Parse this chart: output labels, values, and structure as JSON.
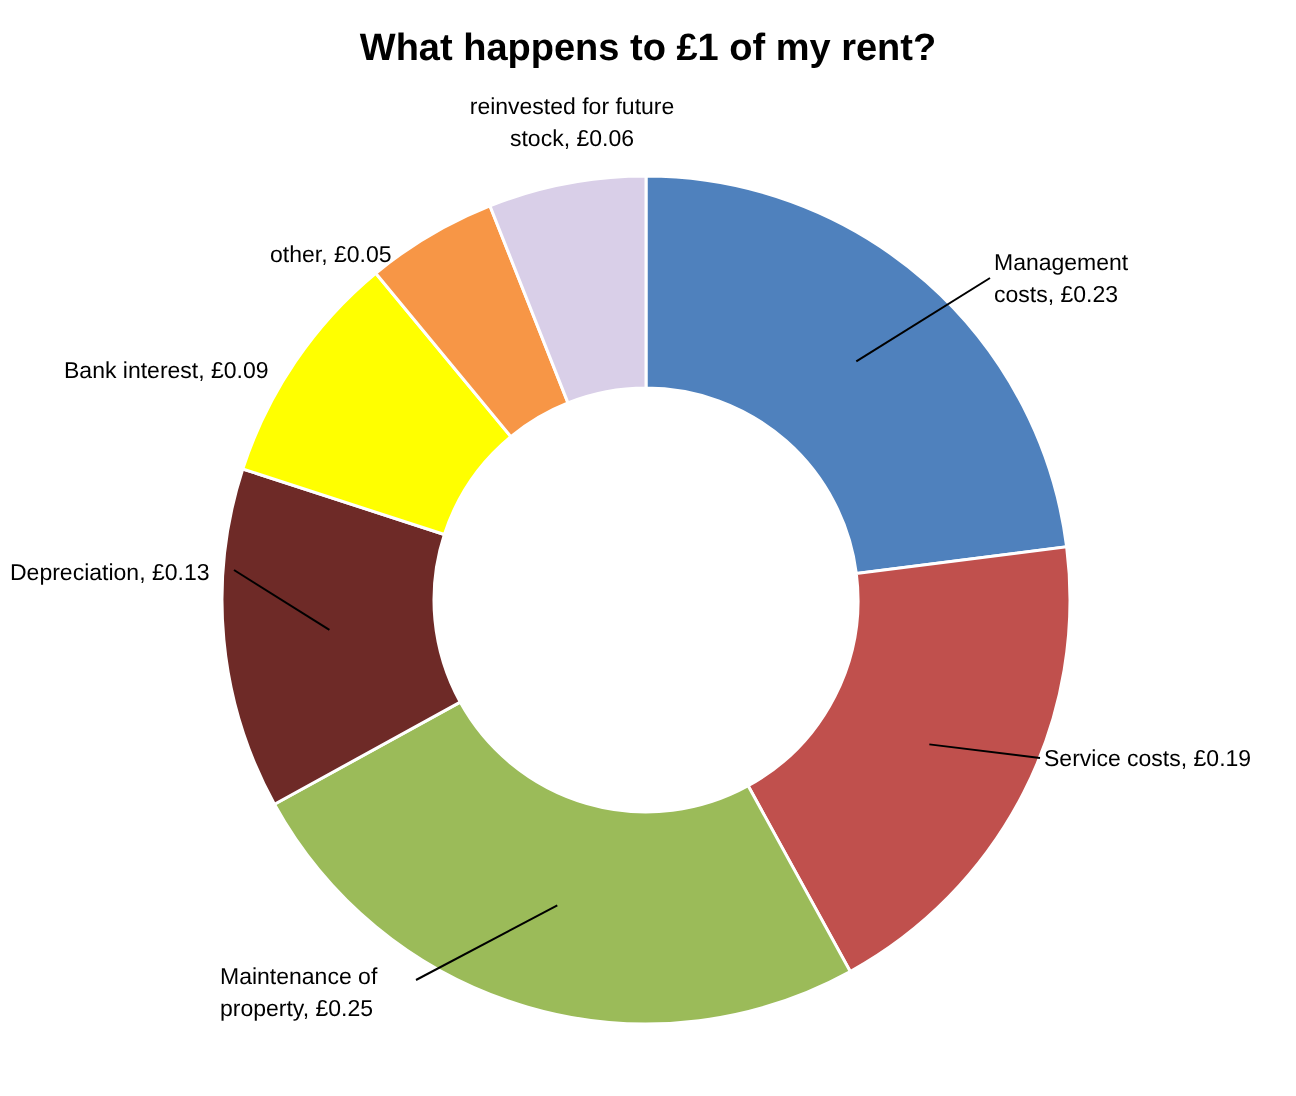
{
  "chart_data": {
    "type": "donut",
    "title": "What happens to £1 of my rent?",
    "categories": [
      "Management costs",
      "Service costs",
      "Maintenance of property",
      "Depreciation",
      "Bank interest",
      "other",
      "reinvested for future stock"
    ],
    "values": [
      0.23,
      0.19,
      0.25,
      0.13,
      0.09,
      0.05,
      0.06
    ],
    "value_labels": [
      "£0.23",
      "£0.19",
      "£0.25",
      "£0.13",
      "£0.09",
      "£0.05",
      "£0.06"
    ],
    "colors": [
      "#4f81bd",
      "#c0504d",
      "#9bbb59",
      "#6e2a27",
      "#ffff00",
      "#f79646",
      "#d9cfe8"
    ]
  }
}
